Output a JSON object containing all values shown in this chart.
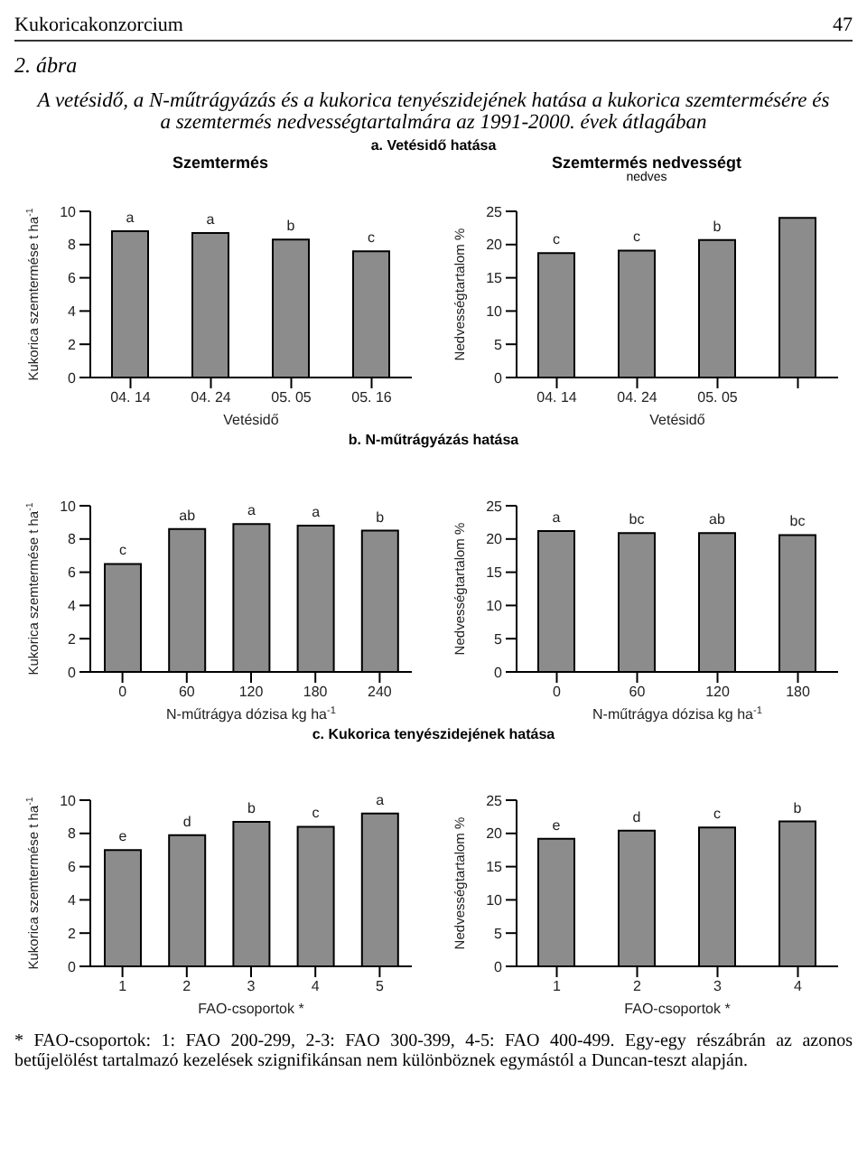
{
  "chart_data": [
    {
      "type": "bar",
      "title": "Szemtermés",
      "annotations": [
        "Kukoricakonzorcium",
        "47",
        "2. ábra",
        "A vetésidő, a N-műtrágyázás és a kukorica tenyészidejének hatása a kukorica szemtermésére és a szemtermés nedvességtartalmára az 1991-2000. évek átlagában",
        "a. Vetésidő hatása"
      ],
      "xlabel": "Vetésidő",
      "ylabel": "Kukorica szemtermése t ha$^{-1}$",
      "categories": [
        "04. 14",
        "04. 24",
        "05. 05",
        "05. 16"
      ],
      "values": [
        8.8,
        8.7,
        8.3,
        7.6
      ],
      "value_labels": [
        "a",
        "a",
        "b",
        "c"
      ],
      "color": "#8c8c8c",
      "ylim": [
        0,
        10
      ],
      "yticks": [
        0,
        2,
        4,
        6,
        8,
        10
      ]
    },
    {
      "type": "bar",
      "title": "Szemtermés nedvességt",
      "subtitle": "nedves",
      "annotations": [
        "b. N-műtrágyázás hatása"
      ],
      "xlabel": "Vetésidő",
      "ylabel": "Nedvességtartalom %",
      "categories": [
        "04. 14",
        "04. 24",
        "05. 05",
        null
      ],
      "values": [
        18.7,
        19.1,
        20.7,
        24
      ],
      "value_labels": [
        "c",
        "c",
        "b",
        null
      ],
      "color": "#8c8c8c",
      "ylim": [
        0,
        25
      ],
      "yticks": [
        0,
        5,
        10,
        15,
        20,
        25
      ]
    },
    {
      "type": "bar",
      "xlabel": "N-műtrágya dózisa kg ha$^{-1}$",
      "ylabel": "Kukorica szemtermése t ha$^{-1}$",
      "categories": [
        "0",
        "60",
        "120",
        "180",
        "240"
      ],
      "values": [
        6.5,
        8.6,
        8.9,
        8.8,
        8.5
      ],
      "value_labels": [
        "c",
        "ab",
        "a",
        "a",
        "b"
      ],
      "color": "#8c8c8c",
      "ylim": [
        0,
        10
      ],
      "yticks": [
        0,
        2,
        4,
        6,
        8,
        10
      ]
    },
    {
      "type": "bar",
      "annotations": [
        "c. Kukorica tenyészidejének  hatása"
      ],
      "xlabel": "N-műtrágya dózisa kg ha$^{-1}$",
      "ylabel": "Nedvességtartalom %",
      "categories": [
        "0",
        "60",
        "120",
        "180"
      ],
      "values": [
        21.2,
        20.9,
        20.9,
        20.6
      ],
      "value_labels": [
        "a",
        "bc",
        "ab",
        "bc"
      ],
      "color": "#8c8c8c",
      "ylim": [
        0,
        25
      ],
      "yticks": [
        0,
        5,
        10,
        15,
        20,
        25
      ]
    },
    {
      "type": "bar",
      "xlabel": "FAO-csoportok *",
      "ylabel": "Kukorica szemtermése t ha$^{-1}$",
      "categories": [
        "1",
        "2",
        "3",
        "4",
        "5"
      ],
      "values": [
        7.0,
        7.9,
        8.7,
        8.4,
        9.2
      ],
      "value_labels": [
        "e",
        "d",
        "b",
        "c",
        "a"
      ],
      "color": "#8c8c8c",
      "ylim": [
        0,
        10
      ],
      "yticks": [
        0,
        2,
        4,
        6,
        8,
        10
      ]
    },
    {
      "type": "bar",
      "annotations": [
        "* FAO-csoportok: 1: FAO 200-299, 2-3: FAO 300-399, 4-5: FAO 400-499. Egy-egy részábrán az azonos betűjelölést tartalmazó kezelések  szignifikánsan nem különböznek egymástól a Duncan-teszt alapján."
      ],
      "xlabel": "FAO-csoportok *",
      "ylabel": "Nedvességtartalom %",
      "categories": [
        "1",
        "2",
        "3",
        "4"
      ],
      "values": [
        19.2,
        20.4,
        20.9,
        21.8
      ],
      "value_labels": [
        "e",
        "d",
        "c",
        "b"
      ],
      "color": "#8c8c8c",
      "ylim": [
        0,
        25
      ],
      "yticks": [
        0,
        5,
        10,
        15,
        20,
        25
      ]
    }
  ]
}
